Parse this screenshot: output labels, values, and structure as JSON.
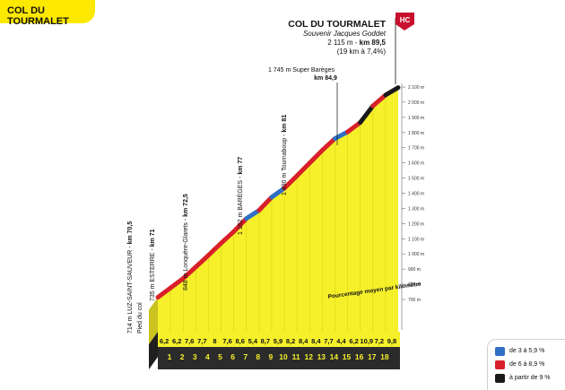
{
  "page_title": "COL DU TOURMALET",
  "chart_data": {
    "type": "area",
    "title": "COL DU TOURMALET",
    "xlabel": "",
    "ylabel": "",
    "elevation_ylim": [
      700,
      2100
    ],
    "elevation_ticks": [
      700,
      800,
      900,
      1000,
      1100,
      1200,
      1300,
      1400,
      1500,
      1600,
      1700,
      1800,
      1900,
      2000,
      2100
    ],
    "elevation_tick_labels": [
      "700 m",
      "800 m",
      "900 m",
      "1 000 m",
      "1 100 m",
      "1 200 m",
      "1 300 m",
      "1 400 m",
      "1 500 m",
      "1 600 m",
      "1 700 m",
      "1 800 m",
      "1 900 m",
      "2 000 m",
      "2 100 m"
    ],
    "km": [
      1,
      2,
      3,
      4,
      5,
      6,
      7,
      8,
      9,
      10,
      11,
      12,
      13,
      14,
      15,
      16,
      17,
      18
    ],
    "km_labels": [
      "1",
      "2",
      "3",
      "4",
      "5",
      "6",
      "7",
      "8",
      "9",
      "10",
      "11",
      "12",
      "13",
      "14",
      "15",
      "16",
      "17",
      "18"
    ],
    "gradient_values": [
      6.2,
      6.2,
      7.6,
      7.7,
      8,
      7.6,
      8.6,
      5.4,
      8.7,
      5.9,
      8.2,
      8.4,
      8.4,
      7.7,
      4.4,
      6.2,
      10.9,
      7.2,
      9.8
    ],
    "gradient_labels": [
      "6,2",
      "6,2",
      "7,6",
      "7,7",
      "8",
      "7,6",
      "8,6",
      "5,4",
      "8,7",
      "5,9",
      "8,2",
      "8,4",
      "8,4",
      "7,7",
      "4,4",
      "6,2",
      "10,9",
      "7,2",
      "9,8"
    ],
    "gradient_caption": "Pourcentage moyen par kilomètre",
    "summit": {
      "name": "COL DU TOURMALET",
      "subtitle": "Souvenir Jacques Goddet",
      "altitude": "2 115 m",
      "km_label": "km 89,5",
      "detail": "(19 km à 7,4%)",
      "category": "HC"
    },
    "waypoints": [
      {
        "altitude": "714 m",
        "name": "LUZ-SAINT-SAUVEUR",
        "km_label": "km 70,5",
        "note": "Pied du col"
      },
      {
        "altitude": "735 m",
        "name": "ESTERRE",
        "km_label": "km 71"
      },
      {
        "altitude": "848 m",
        "name": "Lonquère-Glarets",
        "km_label": "km 72,5"
      },
      {
        "altitude": "1 162 m",
        "name": "BARÈGES",
        "km_label": "km 77"
      },
      {
        "altitude": "1 490 m",
        "name": "Tournaboup",
        "km_label": "km 81"
      },
      {
        "altitude": "1 745 m",
        "name": "Super Barèges",
        "km_label": "km 84,9"
      }
    ],
    "legend": [
      {
        "label": "de 3 à 5,9 %",
        "color": "#2f6fc4"
      },
      {
        "label": "de 6 à 8,9 %",
        "color": "#d8202a"
      },
      {
        "label": "à partir de 9 %",
        "color": "#1a1a1a"
      }
    ],
    "colors": {
      "fill": "#f6f02a",
      "axis_band": "#2b2b2b",
      "accent": "#fde800"
    }
  }
}
